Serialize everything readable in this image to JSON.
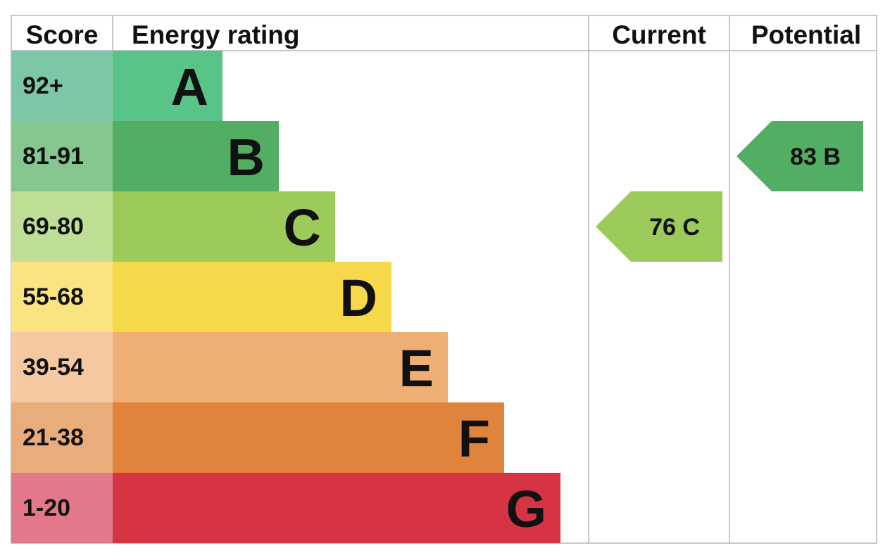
{
  "headers": {
    "score": "Score",
    "rating": "Energy rating",
    "current": "Current",
    "potential": "Potential"
  },
  "chart_data": {
    "type": "bar",
    "bands": [
      {
        "letter": "A",
        "score": "92+",
        "band_color": "#58c487",
        "score_color": "#7ec7a6"
      },
      {
        "letter": "B",
        "score": "81-91",
        "band_color": "#52ae63",
        "score_color": "#86c68f"
      },
      {
        "letter": "C",
        "score": "69-80",
        "band_color": "#9ccb5b",
        "score_color": "#bfde95"
      },
      {
        "letter": "D",
        "score": "55-68",
        "band_color": "#f6d84b",
        "score_color": "#f9e481"
      },
      {
        "letter": "E",
        "score": "39-54",
        "band_color": "#efae73",
        "score_color": "#f4c8a0"
      },
      {
        "letter": "F",
        "score": "21-38",
        "band_color": "#e0843b",
        "score_color": "#e9ad7b"
      },
      {
        "letter": "G",
        "score": "1-20",
        "band_color": "#d63444",
        "score_color": "#e3788a"
      }
    ],
    "current": {
      "value": 76,
      "letter": "C",
      "label": "76  C",
      "color": "#9ccb5b"
    },
    "potential": {
      "value": 83,
      "letter": "B",
      "label": "83  B",
      "color": "#52ae63"
    }
  }
}
